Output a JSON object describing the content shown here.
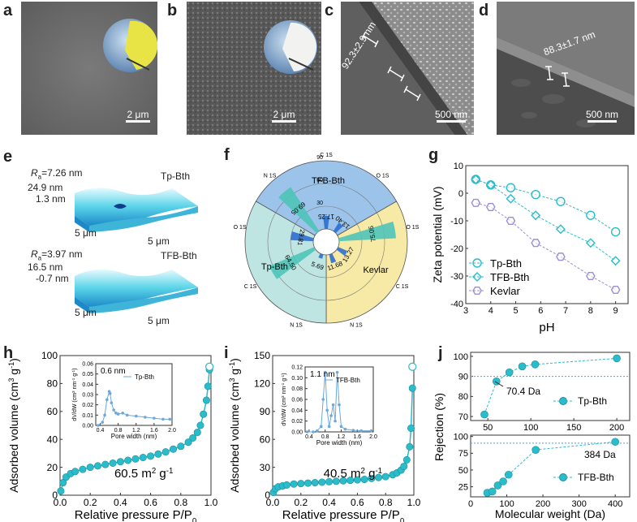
{
  "panel_labels": [
    "a",
    "b",
    "c",
    "d",
    "e",
    "f",
    "g",
    "h",
    "i",
    "j"
  ],
  "sem": {
    "a_scale": "2 μm",
    "b_scale": "2 μm",
    "c_scale": "500 nm",
    "c_thickness": "92.3±2.9 nm",
    "d_scale": "500 nm",
    "d_thickness": "88.3±1.7 nm"
  },
  "afm": {
    "top": {
      "ra_label": "R",
      "ra_sub": "a",
      "ra_value": "=7.26 nm",
      "zmax": "24.9 nm",
      "zmin": "1.3 nm",
      "name": "Tp-Bth",
      "ax1": "5 μm",
      "ax2": "5 μm"
    },
    "bottom": {
      "ra_label": "R",
      "ra_sub": "a",
      "ra_value": "=3.97 nm",
      "zmax": "16.5 nm",
      "zmin": "-0.7 nm",
      "name": "TFB-Bth",
      "ax1": "5 μm",
      "ax2": "5 μm"
    }
  },
  "colors": {
    "cyan": "#2bbccb",
    "tfb": "#9cc3ea",
    "kevlar": "#f6eaa6",
    "tp": "#bfe5e3",
    "purple": "#9a8fd3"
  },
  "chart_data": [
    {
      "id": "f",
      "type": "polar-bar",
      "ring_ticks": [
        "30",
        "60",
        "90"
      ],
      "sectors": [
        {
          "name": "TFB-Bth",
          "bars": [
            {
              "label": "C 1S",
              "value": 69.05
            },
            {
              "label": "N 1S",
              "value": 17.25
            },
            {
              "label": "O 1S",
              "value": 13.4
            }
          ],
          "axis_labels": [
            "N 1S",
            "C 1S",
            "O 1S"
          ]
        },
        {
          "name": "Kevlar",
          "bars": [
            {
              "label": "C 1S",
              "value": 75.05
            },
            {
              "label": "O 1S",
              "value": 13.27
            },
            {
              "label": "N 1S",
              "value": 11.68
            }
          ],
          "axis_labels": [
            "O 1S",
            "C 1S",
            "N 1S"
          ]
        },
        {
          "name": "Tp-Bth",
          "bars": [
            {
              "label": "N 1S",
              "value": 5.69
            },
            {
              "label": "C 1S",
              "value": 64.5
            },
            {
              "label": "O 1S",
              "value": 29.81
            }
          ],
          "axis_labels": [
            "N 1S",
            "C 1S",
            "O 1S"
          ]
        }
      ]
    },
    {
      "id": "g",
      "type": "line",
      "xlabel": "pH",
      "ylabel": "Zeta potential (mV)",
      "xlim": [
        3,
        9.5
      ],
      "ylim": [
        -40,
        10
      ],
      "xticks": [
        "3",
        "4",
        "5",
        "6",
        "7",
        "8",
        "9"
      ],
      "yticks": [
        "10",
        "0",
        "-10",
        "-20",
        "-30",
        "-40"
      ],
      "series": [
        {
          "name": "Tp-Bth",
          "marker": "circle",
          "x": [
            3.4,
            4,
            4.8,
            5.8,
            6.8,
            8,
            9
          ],
          "y": [
            5,
            3,
            2,
            -0.5,
            -3,
            -8,
            -14
          ]
        },
        {
          "name": "TFB-Bth",
          "marker": "diamond",
          "x": [
            3.4,
            4,
            4.8,
            5.8,
            6.8,
            8,
            9
          ],
          "y": [
            5,
            3,
            -2,
            -8,
            -13,
            -18,
            -24.5
          ]
        },
        {
          "name": "Kevlar",
          "marker": "hexagon",
          "x": [
            3.4,
            4,
            4.8,
            5.8,
            6.8,
            8,
            9
          ],
          "y": [
            -3.5,
            -5,
            -10,
            -18,
            -23,
            -30,
            -35
          ]
        }
      ]
    },
    {
      "id": "h",
      "type": "line",
      "xlabel": "Relative pressure P/P",
      "xlabel_sub": "0",
      "ylabel": "Adsorbed volume (cm",
      "ylabel_sup": "3",
      "ylabel_tail": " g",
      "ylabel_sup2": "-1",
      "ylabel_close": ")",
      "xlim": [
        0,
        1.0
      ],
      "ylim": [
        0,
        100
      ],
      "xticks": [
        "0.0",
        "0.2",
        "0.4",
        "0.6",
        "0.8",
        "1.0"
      ],
      "yticks": [
        "0",
        "20",
        "40",
        "60",
        "80",
        "100"
      ],
      "annotation": "60.5 m",
      "annotation_sup": "2",
      "annotation_tail": " g",
      "annotation_sup2": "-1",
      "series": [
        {
          "name": "adsorption",
          "x": [
            0.005,
            0.02,
            0.04,
            0.07,
            0.1,
            0.15,
            0.2,
            0.25,
            0.3,
            0.35,
            0.4,
            0.45,
            0.5,
            0.55,
            0.6,
            0.65,
            0.7,
            0.75,
            0.8,
            0.85,
            0.88,
            0.91,
            0.93,
            0.95,
            0.97,
            0.98,
            0.99
          ],
          "y": [
            3,
            9,
            13,
            15.5,
            17,
            18.5,
            20,
            21,
            22,
            23,
            24,
            25,
            26,
            27,
            28,
            29.5,
            31,
            33,
            35,
            38,
            41,
            45,
            50,
            58,
            68,
            78,
            90
          ]
        }
      ],
      "inset": {
        "series_name": "Tp-Bth",
        "annotation": "0.6 nm",
        "xlabel": "Pore width (nm)",
        "ylabel": "dV/dW (cm",
        "ylabel_sup": "3",
        "ylabel_tail": " nm",
        "ylabel_sup2": "-1",
        "ylabel_tail2": " g",
        "ylabel_sup3": "-1",
        "ylabel_close": ")",
        "xlim": [
          0.3,
          2.0
        ],
        "ylim": [
          0,
          0.06
        ],
        "xticks": [
          "0.4",
          "0.8",
          "1.2",
          "1.6",
          "2.0"
        ],
        "yticks": [
          "0.00",
          "0.01",
          "0.02",
          "0.03",
          "0.04",
          "0.05",
          "0.06"
        ],
        "x": [
          0.35,
          0.45,
          0.5,
          0.55,
          0.6,
          0.62,
          0.65,
          0.7,
          0.75,
          0.8,
          0.9,
          1.0,
          1.2,
          1.4,
          1.6,
          1.8,
          1.95
        ],
        "y": [
          0.0,
          0.003,
          0.01,
          0.025,
          0.033,
          0.031,
          0.022,
          0.015,
          0.012,
          0.011,
          0.012,
          0.01,
          0.009,
          0.008,
          0.007,
          0.006,
          0.006
        ]
      }
    },
    {
      "id": "i",
      "type": "line",
      "xlabel": "Relative pressure P/P",
      "xlabel_sub": "0",
      "ylabel": "Adsorbed volume (cm",
      "ylabel_sup": "3",
      "ylabel_tail": " g",
      "ylabel_sup2": "-1",
      "ylabel_close": ")",
      "xlim": [
        0,
        1.0
      ],
      "ylim": [
        0,
        150
      ],
      "xticks": [
        "0.0",
        "0.2",
        "0.4",
        "0.6",
        "0.8",
        "1.0"
      ],
      "yticks": [
        "0",
        "30",
        "60",
        "90",
        "120",
        "150"
      ],
      "annotation": "40.5 m",
      "annotation_sup": "2",
      "annotation_tail": " g",
      "annotation_sup2": "-1",
      "series": [
        {
          "name": "adsorption",
          "x": [
            0.005,
            0.02,
            0.04,
            0.07,
            0.1,
            0.15,
            0.2,
            0.25,
            0.3,
            0.35,
            0.4,
            0.45,
            0.5,
            0.55,
            0.6,
            0.65,
            0.7,
            0.75,
            0.8,
            0.85,
            0.88,
            0.91,
            0.93,
            0.95,
            0.97,
            0.98,
            0.99
          ],
          "y": [
            3,
            7,
            9,
            10,
            11,
            12,
            12.5,
            13,
            13.5,
            14,
            14.5,
            15,
            15.5,
            16,
            16.5,
            17,
            18,
            19,
            20,
            22,
            24,
            27,
            31,
            38,
            52,
            72,
            115
          ]
        }
      ],
      "inset": {
        "series_name": "TFB-Bth",
        "annotation": "1.1 nm",
        "xlabel": "Pore width (nm)",
        "ylabel": "dV/dW (cm",
        "ylabel_sup": "3",
        "ylabel_tail": " nm",
        "ylabel_sup2": "-1",
        "ylabel_tail2": " g",
        "ylabel_sup3": "-1",
        "ylabel_close": ")",
        "xlim": [
          0.3,
          2.0
        ],
        "ylim": [
          0,
          0.12
        ],
        "xticks": [
          "0.4",
          "0.8",
          "1.2",
          "1.6",
          "2.0"
        ],
        "yticks": [
          "0.00",
          "0.02",
          "0.04",
          "0.06",
          "0.08",
          "0.10",
          "0.12"
        ],
        "x": [
          0.35,
          0.5,
          0.6,
          0.7,
          0.75,
          0.8,
          0.85,
          0.9,
          0.95,
          1.0,
          1.05,
          1.1,
          1.15,
          1.2,
          1.3,
          1.5,
          1.7,
          1.95
        ],
        "y": [
          0.0,
          0.0,
          0.002,
          0.01,
          0.06,
          0.11,
          0.04,
          0.01,
          0.03,
          0.05,
          0.02,
          0.11,
          0.05,
          0.01,
          0.005,
          0.003,
          0.002,
          0.002
        ]
      }
    },
    {
      "id": "j",
      "type": "line",
      "ylabel": "Rejection (%)",
      "xlabel": "Molecular weight (Da)",
      "panels": [
        {
          "name": "Tp-Bth",
          "xlim": [
            30,
            215
          ],
          "ylim": [
            68,
            102
          ],
          "xticks": [
            "50",
            "100",
            "150",
            "200"
          ],
          "yticks": [
            "70",
            "80",
            "90",
            "100"
          ],
          "reference_y": 90,
          "annotation": "70.4 Da",
          "x": [
            46,
            60,
            75,
            90,
            105,
            200
          ],
          "y": [
            71,
            87.5,
            92,
            95,
            96,
            99
          ]
        },
        {
          "name": "TFB-Bth",
          "xlim": [
            0,
            440
          ],
          "ylim": [
            10,
            102
          ],
          "xticks": [
            "0",
            "100",
            "200",
            "300",
            "400"
          ],
          "yticks": [
            "25",
            "50",
            "75",
            "100"
          ],
          "reference_y": 90,
          "annotation": "384 Da",
          "x": [
            46,
            60,
            75,
            90,
            105,
            180,
            400
          ],
          "y": [
            16,
            18,
            27,
            33,
            43,
            80,
            92
          ]
        }
      ]
    }
  ]
}
